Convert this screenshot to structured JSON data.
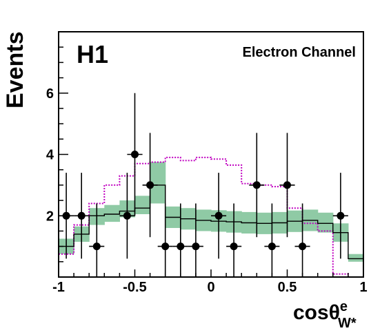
{
  "chart_data": {
    "type": "line",
    "experiment_label": "H1",
    "channel_label": "Electron Channel",
    "ylabel": "Events",
    "xlabel": {
      "main": "cosθ",
      "superscript": "e",
      "subscript": "W*"
    },
    "xlim": [
      -1,
      1
    ],
    "ylim": [
      0,
      8
    ],
    "x_ticks": [
      {
        "value": -1,
        "label": "-1"
      },
      {
        "value": -0.5,
        "label": "-0.5"
      },
      {
        "value": 0,
        "label": "0"
      },
      {
        "value": 0.5,
        "label": "0.5"
      },
      {
        "value": 1,
        "label": "1"
      }
    ],
    "y_ticks": [
      {
        "value": 2,
        "label": "2"
      },
      {
        "value": 4,
        "label": "4"
      },
      {
        "value": 6,
        "label": "6"
      }
    ],
    "bin_edges": [
      -1,
      -0.9,
      -0.8,
      -0.7,
      -0.6,
      -0.5,
      -0.4,
      -0.3,
      -0.2,
      -0.1,
      0,
      0.1,
      0.2,
      0.3,
      0.4,
      0.5,
      0.6,
      0.7,
      0.8,
      0.9,
      1
    ],
    "series": [
      {
        "kind": "band",
        "color": "#8fcaa5",
        "lower": [
          0.75,
          1.15,
          1.7,
          1.8,
          1.95,
          2.05,
          2.4,
          1.6,
          1.55,
          1.5,
          1.48,
          1.45,
          1.42,
          1.4,
          1.42,
          1.47,
          1.5,
          1.45,
          1.15,
          0.5
        ],
        "upper": [
          1.25,
          1.65,
          2.25,
          2.35,
          2.5,
          2.65,
          3.75,
          2.3,
          2.25,
          2.2,
          2.18,
          2.15,
          2.12,
          2.1,
          2.12,
          2.17,
          2.2,
          2.1,
          1.75,
          0.75
        ]
      },
      {
        "kind": "step",
        "color": "#000000",
        "values": [
          1.0,
          1.4,
          2.0,
          2.05,
          2.15,
          2.25,
          3.0,
          1.95,
          1.9,
          1.85,
          1.82,
          1.8,
          1.77,
          1.75,
          1.77,
          1.82,
          1.85,
          1.75,
          1.45,
          0.6
        ]
      },
      {
        "kind": "step_dotted",
        "color": "#c000c0",
        "values": [
          0.75,
          1.7,
          2.4,
          3.0,
          3.3,
          3.7,
          3.75,
          3.9,
          3.8,
          3.9,
          3.85,
          3.65,
          3.05,
          3.0,
          2.95,
          2.25,
          1.75,
          1.5,
          0.1,
          0.0
        ]
      },
      {
        "kind": "points",
        "color": "#000000",
        "x": [
          -0.95,
          -0.85,
          -0.75,
          -0.55,
          -0.5,
          -0.4,
          -0.3,
          -0.2,
          -0.1,
          0.05,
          0.15,
          0.3,
          0.4,
          0.5,
          0.6,
          0.85
        ],
        "y": [
          2,
          2,
          1,
          2,
          4,
          3,
          1,
          1,
          1,
          2,
          1,
          3,
          1,
          3,
          1,
          2
        ],
        "xerr": [
          0.05,
          0.05,
          0.05,
          0.05,
          0.05,
          0.05,
          0.05,
          0.05,
          0.05,
          0.05,
          0.05,
          0.05,
          0.05,
          0.05,
          0.05,
          0.05
        ],
        "yerr_low": [
          1.4,
          1.4,
          1.0,
          1.4,
          2.0,
          1.7,
          1.0,
          1.0,
          1.0,
          1.4,
          1.0,
          1.7,
          1.0,
          1.7,
          1.0,
          1.4
        ],
        "yerr_high": [
          1.4,
          1.4,
          1.4,
          1.4,
          2.0,
          1.7,
          1.4,
          1.4,
          1.4,
          1.4,
          1.4,
          1.7,
          1.4,
          1.7,
          1.4,
          1.4
        ]
      }
    ]
  }
}
